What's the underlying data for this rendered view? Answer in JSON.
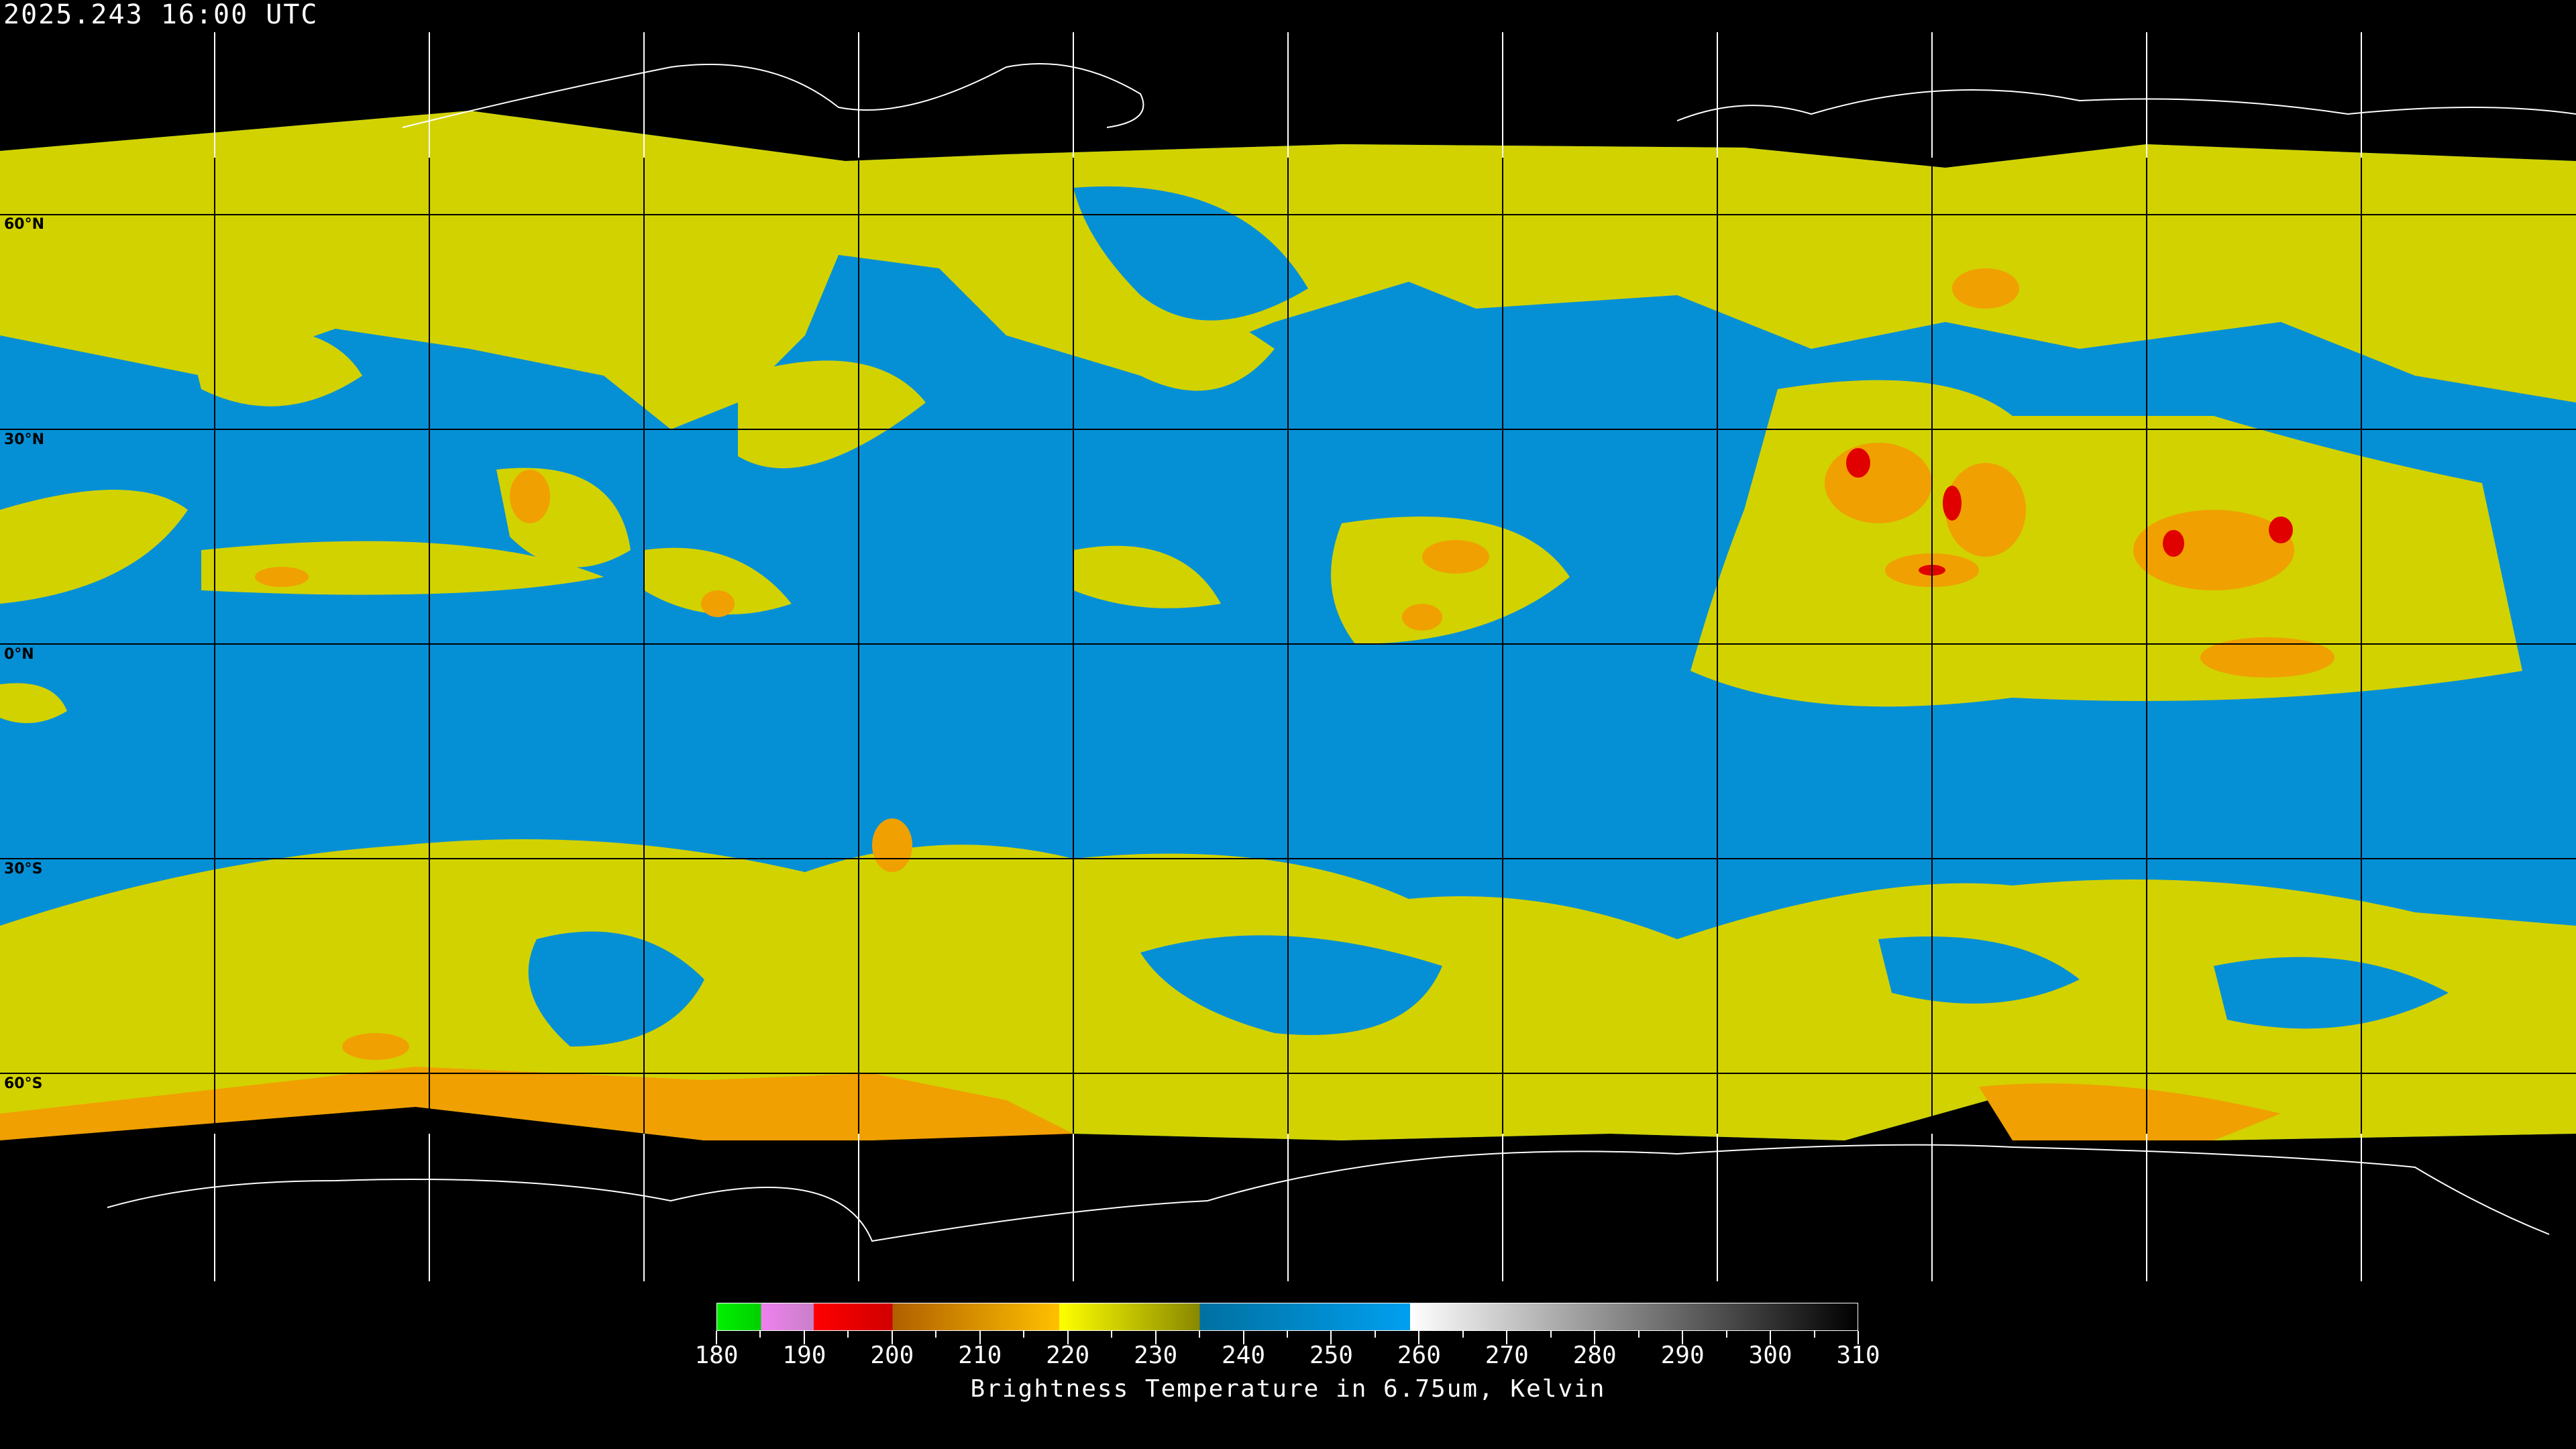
{
  "timestamp": "2025.243 16:00 UTC",
  "lat_labels": [
    "60°N",
    "30°N",
    "0°N",
    "30°S",
    "60°S"
  ],
  "colors": {
    "background": "#000000",
    "moist_blue": "#0590d6",
    "dry_yellow": "#d2d200",
    "cold_orange": "#f0a000",
    "very_cold_red": "#e00000",
    "gridline_over_data": "#000000",
    "gridline_over_space": "#ffffff"
  },
  "colorbar": {
    "title": "Brightness Temperature in 6.75um, Kelvin",
    "min": 180,
    "max": 310,
    "tick_labels": [
      "180",
      "190",
      "200",
      "210",
      "220",
      "230",
      "240",
      "250",
      "260",
      "270",
      "280",
      "290",
      "300",
      "310"
    ],
    "segments": [
      {
        "from": 180,
        "to": 185,
        "colors": [
          "#00f000",
          "#00d000"
        ]
      },
      {
        "from": 185,
        "to": 191,
        "colors": [
          "#f080f0",
          "#c880c8"
        ]
      },
      {
        "from": 191,
        "to": 200,
        "colors": [
          "#ff0000",
          "#d00000"
        ]
      },
      {
        "from": 200,
        "to": 219,
        "colors": [
          "#b06000",
          "#ffc000"
        ]
      },
      {
        "from": 219,
        "to": 235,
        "colors": [
          "#ffff00",
          "#888800"
        ]
      },
      {
        "from": 235,
        "to": 259,
        "colors": [
          "#0070a0",
          "#00a0f0"
        ]
      },
      {
        "from": 259,
        "to": 310,
        "colors": [
          "#ffffff",
          "#000000"
        ]
      }
    ]
  }
}
